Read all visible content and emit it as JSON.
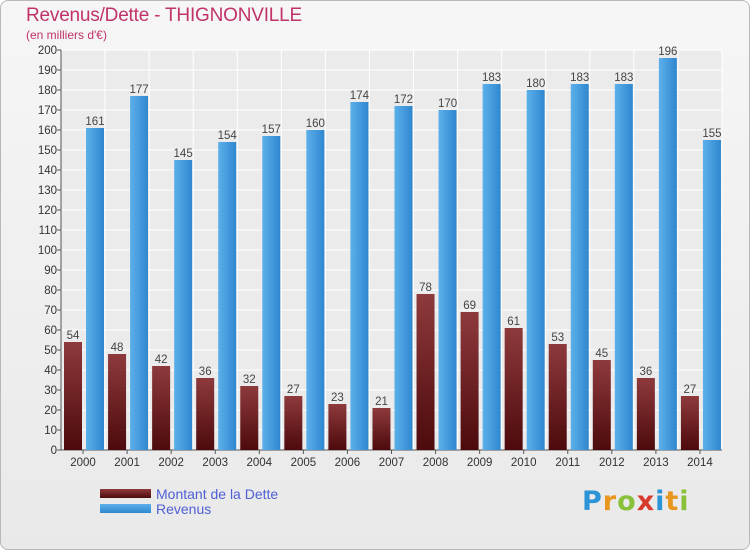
{
  "header": {
    "title": "Revenus/Dette - THIGNONVILLE",
    "subtitle": "(en milliers d'€)"
  },
  "legend": {
    "debt_label": "Montant de la Dette",
    "revenue_label": "Revenus"
  },
  "brand": {
    "logo_text": "Proxiti"
  },
  "colors": {
    "debt_top": "#8e3a3c",
    "debt_bottom": "#4d0a0c",
    "revenue_top": "#5cb0ea",
    "revenue_bottom": "#2f87cf",
    "title": "#c0336b",
    "legend_text": "#4f5fd4"
  },
  "chart_data": {
    "type": "bar",
    "title": "Revenus/Dette - THIGNONVILLE",
    "subtitle": "(en milliers d'€)",
    "categories": [
      "2000",
      "2001",
      "2002",
      "2003",
      "2004",
      "2005",
      "2006",
      "2007",
      "2008",
      "2009",
      "2010",
      "2011",
      "2012",
      "2013",
      "2014"
    ],
    "series": [
      {
        "name": "Montant de la Dette",
        "values": [
          54,
          48,
          42,
          36,
          32,
          27,
          23,
          21,
          78,
          69,
          61,
          53,
          45,
          36,
          27
        ]
      },
      {
        "name": "Revenus",
        "values": [
          161,
          177,
          145,
          154,
          157,
          160,
          174,
          172,
          170,
          183,
          180,
          183,
          183,
          196,
          155
        ]
      }
    ],
    "ylim": [
      0,
      200
    ],
    "ytick_step": 10,
    "grid": true,
    "legend_position": "bottom-left"
  }
}
